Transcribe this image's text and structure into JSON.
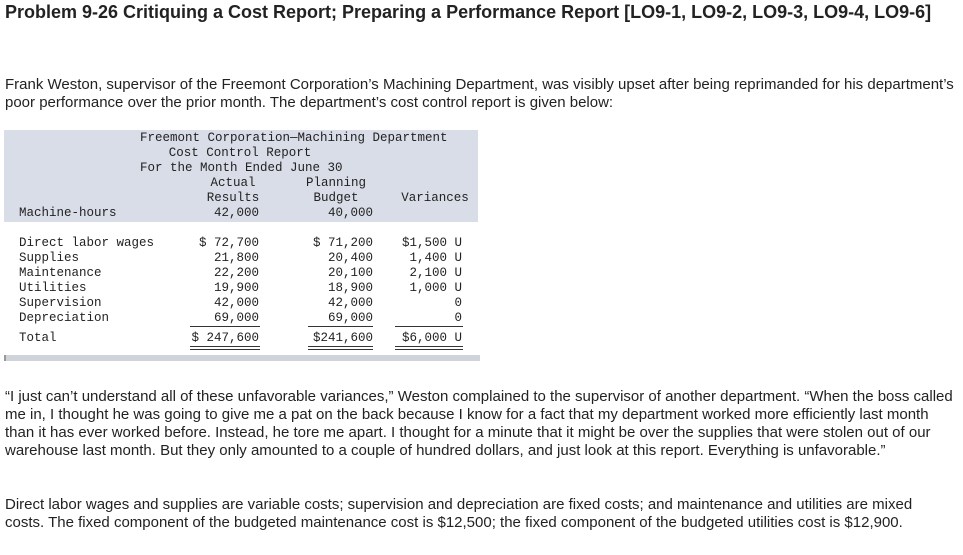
{
  "header": {
    "title": "Problem 9-26 Critiquing a Cost Report; Preparing a Performance Report [LO9-1, LO9-2, LO9-3, LO9-4, LO9-6]"
  },
  "paragraphs": [
    "Frank Weston, supervisor of the Freemont Corporation’s Machining Department, was visibly upset after being reprimanded for his department’s poor performance over the prior month. The department’s cost control report is given below:",
    "“I just can’t understand all of these unfavorable variances,” Weston complained to the supervisor of another department. “When the boss called me in, I thought he was going to give me a pat on the back because I know for a fact that my department worked more efficiently last month than it has ever worked before. Instead, he tore me apart. I thought for a minute that it might be over the supplies that were stolen out of our warehouse last month. But they only amounted to a couple of hundred dollars, and just look at this report. Everything is unfavorable.”",
    "Direct labor wages and supplies are variable costs; supervision and depreciation are fixed costs; and maintenance and utilities are mixed costs. The fixed component of the budgeted maintenance cost is $12,500; the fixed component of the budgeted utilities cost is $12,900."
  ],
  "report": {
    "title_lines": [
      "Freemont Corporation—Machining Department",
      "Cost Control Report",
      "For the Month Ended June 30"
    ],
    "column_headers": [
      [
        "Actual",
        "Results"
      ],
      [
        "Planning",
        "Budget"
      ],
      [
        "Variances"
      ]
    ],
    "machine_hours": [
      "Machine-hours",
      "42,000",
      "40,000"
    ],
    "rows": [
      [
        "Direct labor wages",
        "$ 72,700",
        "$ 71,200",
        "$1,500 U"
      ],
      [
        "Supplies",
        "21,800",
        "20,400",
        "1,400 U"
      ],
      [
        "Maintenance",
        "22,200",
        "20,100",
        "2,100 U"
      ],
      [
        "Utilities",
        "19,900",
        "18,900",
        "1,000 U"
      ],
      [
        "Supervision",
        "42,000",
        "42,000",
        "0"
      ],
      [
        "Depreciation",
        "69,000",
        "69,000",
        "0"
      ]
    ],
    "total": [
      "Total",
      "$ 247,600",
      "$241,600",
      "$6,000 U"
    ]
  }
}
